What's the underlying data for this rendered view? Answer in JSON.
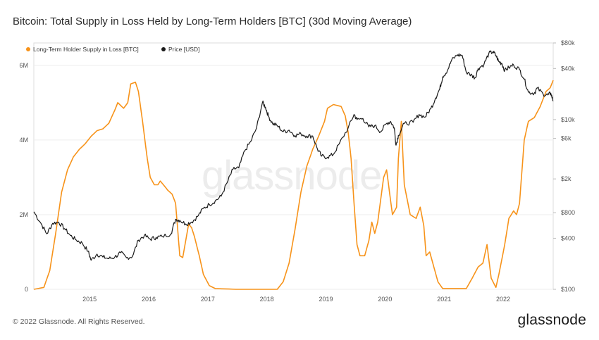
{
  "title": "Bitcoin: Total Supply in Loss Held by Long-Term Holders [BTC] (30d Moving Average)",
  "watermark": "glassnode",
  "footer": {
    "copyright": "© 2022 Glassnode. All Rights Reserved.",
    "logo": "glassnode"
  },
  "colors": {
    "lth": "#f7931a",
    "price": "#1a1a1a",
    "grid": "#eeeeee",
    "axis": "#cccccc"
  },
  "chart_data": {
    "type": "line",
    "title": "Bitcoin: Total Supply in Loss Held by Long-Term Holders [BTC] (30d Moving Average)",
    "x_range": [
      2014.08,
      2022.87
    ],
    "x_ticks": [
      2015,
      2016,
      2017,
      2018,
      2019,
      2020,
      2021,
      2022
    ],
    "x_tick_labels": [
      "2015",
      "2016",
      "2017",
      "2018",
      "2019",
      "2020",
      "2021",
      "2022"
    ],
    "y_left": {
      "range": [
        0,
        6.6
      ],
      "unit": "million BTC",
      "ticks": [
        0,
        2,
        4,
        6
      ],
      "tick_labels": [
        "0",
        "2M",
        "4M",
        "6M"
      ]
    },
    "y_right": {
      "scale": "log",
      "range": [
        100,
        80000
      ],
      "ticks": [
        100,
        400,
        800,
        2000,
        6000,
        10000,
        40000,
        80000
      ],
      "tick_labels": [
        "$100",
        "$400",
        "$800",
        "$2k",
        "$6k",
        "$10k",
        "$40k",
        "$80k"
      ]
    },
    "legend": [
      {
        "name": "Long-Term Holder Supply in Loss [BTC]",
        "color": "#f7931a"
      },
      {
        "name": "Price [USD]",
        "color": "#1a1a1a"
      }
    ],
    "series": [
      {
        "name": "Long-Term Holder Supply in Loss [BTC]",
        "axis": "left",
        "color": "#f7931a",
        "points": [
          [
            2014.08,
            0
          ],
          [
            2014.25,
            0.05
          ],
          [
            2014.35,
            0.5
          ],
          [
            2014.45,
            1.5
          ],
          [
            2014.55,
            2.6
          ],
          [
            2014.65,
            3.2
          ],
          [
            2014.75,
            3.55
          ],
          [
            2014.85,
            3.75
          ],
          [
            2014.95,
            3.9
          ],
          [
            2015.05,
            4.1
          ],
          [
            2015.15,
            4.25
          ],
          [
            2015.25,
            4.3
          ],
          [
            2015.35,
            4.45
          ],
          [
            2015.45,
            4.8
          ],
          [
            2015.5,
            5.0
          ],
          [
            2015.6,
            4.85
          ],
          [
            2015.67,
            5.0
          ],
          [
            2015.72,
            5.5
          ],
          [
            2015.8,
            5.55
          ],
          [
            2015.85,
            5.3
          ],
          [
            2015.92,
            4.5
          ],
          [
            2016.0,
            3.5
          ],
          [
            2016.05,
            3.0
          ],
          [
            2016.12,
            2.8
          ],
          [
            2016.18,
            2.8
          ],
          [
            2016.22,
            2.9
          ],
          [
            2016.3,
            2.75
          ],
          [
            2016.35,
            2.65
          ],
          [
            2016.42,
            2.55
          ],
          [
            2016.48,
            2.3
          ],
          [
            2016.52,
            1.5
          ],
          [
            2016.55,
            0.9
          ],
          [
            2016.6,
            0.85
          ],
          [
            2016.65,
            1.3
          ],
          [
            2016.7,
            1.75
          ],
          [
            2016.75,
            1.65
          ],
          [
            2016.8,
            1.4
          ],
          [
            2016.88,
            0.9
          ],
          [
            2016.95,
            0.4
          ],
          [
            2017.05,
            0.1
          ],
          [
            2017.15,
            0.02
          ],
          [
            2017.5,
            0
          ],
          [
            2018.2,
            0
          ],
          [
            2018.3,
            0.2
          ],
          [
            2018.4,
            0.7
          ],
          [
            2018.5,
            1.6
          ],
          [
            2018.6,
            2.6
          ],
          [
            2018.7,
            3.3
          ],
          [
            2018.8,
            3.75
          ],
          [
            2018.9,
            4.1
          ],
          [
            2019.0,
            4.5
          ],
          [
            2019.05,
            4.85
          ],
          [
            2019.15,
            4.95
          ],
          [
            2019.28,
            4.9
          ],
          [
            2019.35,
            4.65
          ],
          [
            2019.4,
            4.2
          ],
          [
            2019.45,
            3.5
          ],
          [
            2019.5,
            2.3
          ],
          [
            2019.55,
            1.2
          ],
          [
            2019.6,
            0.9
          ],
          [
            2019.68,
            0.9
          ],
          [
            2019.75,
            1.3
          ],
          [
            2019.8,
            1.8
          ],
          [
            2019.85,
            1.5
          ],
          [
            2019.9,
            1.8
          ],
          [
            2019.95,
            2.4
          ],
          [
            2020.0,
            3.0
          ],
          [
            2020.05,
            3.2
          ],
          [
            2020.1,
            2.6
          ],
          [
            2020.15,
            2.0
          ],
          [
            2020.22,
            2.2
          ],
          [
            2020.25,
            3.5
          ],
          [
            2020.3,
            4.5
          ],
          [
            2020.35,
            2.8
          ],
          [
            2020.45,
            2.0
          ],
          [
            2020.55,
            1.9
          ],
          [
            2020.62,
            2.2
          ],
          [
            2020.68,
            1.7
          ],
          [
            2020.72,
            0.9
          ],
          [
            2020.78,
            1.0
          ],
          [
            2020.85,
            0.6
          ],
          [
            2020.92,
            0.2
          ],
          [
            2021.0,
            0.02
          ],
          [
            2021.4,
            0.02
          ],
          [
            2021.5,
            0.3
          ],
          [
            2021.6,
            0.6
          ],
          [
            2021.68,
            0.7
          ],
          [
            2021.75,
            1.2
          ],
          [
            2021.82,
            0.3
          ],
          [
            2021.9,
            0.05
          ],
          [
            2021.95,
            0.4
          ],
          [
            2022.05,
            1.2
          ],
          [
            2022.12,
            1.9
          ],
          [
            2022.2,
            2.1
          ],
          [
            2022.25,
            2.0
          ],
          [
            2022.3,
            2.3
          ],
          [
            2022.38,
            4.0
          ],
          [
            2022.45,
            4.5
          ],
          [
            2022.55,
            4.6
          ],
          [
            2022.65,
            4.9
          ],
          [
            2022.75,
            5.3
          ],
          [
            2022.82,
            5.4
          ],
          [
            2022.87,
            5.6
          ]
        ]
      },
      {
        "name": "Price [USD]",
        "axis": "right",
        "color": "#1a1a1a",
        "points": [
          [
            2014.08,
            820
          ],
          [
            2014.2,
            600
          ],
          [
            2014.3,
            450
          ],
          [
            2014.4,
            600
          ],
          [
            2014.5,
            620
          ],
          [
            2014.6,
            520
          ],
          [
            2014.7,
            430
          ],
          [
            2014.8,
            380
          ],
          [
            2014.9,
            350
          ],
          [
            2015.0,
            280
          ],
          [
            2015.05,
            220
          ],
          [
            2015.15,
            260
          ],
          [
            2015.25,
            240
          ],
          [
            2015.35,
            230
          ],
          [
            2015.45,
            240
          ],
          [
            2015.55,
            270
          ],
          [
            2015.65,
            235
          ],
          [
            2015.75,
            245
          ],
          [
            2015.85,
            380
          ],
          [
            2015.95,
            430
          ],
          [
            2016.05,
            390
          ],
          [
            2016.15,
            410
          ],
          [
            2016.25,
            420
          ],
          [
            2016.4,
            450
          ],
          [
            2016.48,
            670
          ],
          [
            2016.55,
            650
          ],
          [
            2016.65,
            590
          ],
          [
            2016.75,
            620
          ],
          [
            2016.85,
            720
          ],
          [
            2016.95,
            900
          ],
          [
            2017.05,
            1000
          ],
          [
            2017.15,
            1100
          ],
          [
            2017.25,
            1250
          ],
          [
            2017.35,
            1800
          ],
          [
            2017.45,
            2600
          ],
          [
            2017.55,
            2700
          ],
          [
            2017.65,
            4300
          ],
          [
            2017.75,
            5500
          ],
          [
            2017.85,
            8000
          ],
          [
            2017.95,
            16000
          ],
          [
            2018.0,
            14000
          ],
          [
            2018.05,
            11000
          ],
          [
            2018.12,
            9000
          ],
          [
            2018.2,
            8500
          ],
          [
            2018.3,
            7200
          ],
          [
            2018.4,
            7500
          ],
          [
            2018.5,
            6500
          ],
          [
            2018.6,
            6800
          ],
          [
            2018.7,
            6400
          ],
          [
            2018.8,
            6400
          ],
          [
            2018.88,
            4500
          ],
          [
            2018.95,
            3700
          ],
          [
            2019.05,
            3600
          ],
          [
            2019.15,
            3900
          ],
          [
            2019.25,
            5200
          ],
          [
            2019.4,
            8000
          ],
          [
            2019.5,
            11500
          ],
          [
            2019.55,
            10000
          ],
          [
            2019.65,
            10300
          ],
          [
            2019.75,
            8200
          ],
          [
            2019.85,
            8500
          ],
          [
            2019.95,
            7200
          ],
          [
            2020.05,
            9000
          ],
          [
            2020.12,
            9500
          ],
          [
            2020.18,
            8000
          ],
          [
            2020.21,
            5000
          ],
          [
            2020.25,
            6500
          ],
          [
            2020.35,
            9000
          ],
          [
            2020.5,
            9300
          ],
          [
            2020.6,
            11500
          ],
          [
            2020.7,
            10700
          ],
          [
            2020.8,
            13500
          ],
          [
            2020.88,
            18000
          ],
          [
            2020.95,
            23000
          ],
          [
            2021.0,
            32000
          ],
          [
            2021.08,
            38000
          ],
          [
            2021.15,
            50000
          ],
          [
            2021.25,
            58000
          ],
          [
            2021.33,
            57000
          ],
          [
            2021.4,
            36000
          ],
          [
            2021.5,
            33000
          ],
          [
            2021.55,
            31000
          ],
          [
            2021.6,
            40000
          ],
          [
            2021.7,
            45000
          ],
          [
            2021.78,
            60000
          ],
          [
            2021.85,
            63000
          ],
          [
            2021.9,
            57000
          ],
          [
            2021.95,
            48000
          ],
          [
            2022.0,
            46000
          ],
          [
            2022.05,
            38000
          ],
          [
            2022.12,
            41000
          ],
          [
            2022.2,
            44000
          ],
          [
            2022.3,
            39000
          ],
          [
            2022.38,
            30000
          ],
          [
            2022.45,
            21000
          ],
          [
            2022.55,
            20500
          ],
          [
            2022.6,
            23500
          ],
          [
            2022.7,
            20000
          ],
          [
            2022.78,
            19500
          ],
          [
            2022.83,
            20500
          ],
          [
            2022.87,
            16500
          ]
        ]
      }
    ]
  }
}
